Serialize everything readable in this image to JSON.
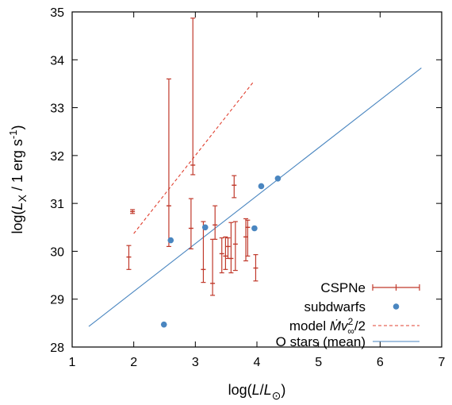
{
  "chart_data": {
    "type": "scatter",
    "xlabel": "log(L/L⊙)",
    "ylabel": "log(Lx / 1 erg s-1)",
    "xlim": [
      1,
      7
    ],
    "ylim": [
      28,
      35
    ],
    "x_ticks": [
      "1",
      "2",
      "3",
      "4",
      "5",
      "6",
      "7"
    ],
    "y_ticks": [
      "28",
      "29",
      "30",
      "31",
      "32",
      "33",
      "34",
      "35"
    ],
    "grid": false,
    "legend_position": "bottom-right",
    "series": [
      {
        "name": "CSPNe",
        "kind": "errorbar",
        "color": "#c0392b",
        "points": [
          {
            "x": 1.92,
            "y": 29.88,
            "ylo": 29.62,
            "yhi": 30.12
          },
          {
            "x": 1.98,
            "y": 30.83,
            "ylo": 30.79,
            "yhi": 30.87
          },
          {
            "x": 2.57,
            "y": 30.95,
            "ylo": 30.1,
            "yhi": 33.6
          },
          {
            "x": 2.93,
            "y": 30.48,
            "ylo": 30.05,
            "yhi": 31.1
          },
          {
            "x": 2.96,
            "y": 31.8,
            "ylo": 31.6,
            "yhi": 34.87
          },
          {
            "x": 3.13,
            "y": 29.62,
            "ylo": 29.35,
            "yhi": 30.62
          },
          {
            "x": 3.28,
            "y": 29.33,
            "ylo": 29.08,
            "yhi": 30.25
          },
          {
            "x": 3.32,
            "y": 30.55,
            "ylo": 30.25,
            "yhi": 30.95
          },
          {
            "x": 3.43,
            "y": 29.95,
            "ylo": 29.55,
            "yhi": 30.28
          },
          {
            "x": 3.49,
            "y": 29.9,
            "ylo": 29.62,
            "yhi": 30.3
          },
          {
            "x": 3.53,
            "y": 30.1,
            "ylo": 29.85,
            "yhi": 30.28
          },
          {
            "x": 3.58,
            "y": 29.85,
            "ylo": 29.55,
            "yhi": 30.6
          },
          {
            "x": 3.63,
            "y": 31.38,
            "ylo": 31.12,
            "yhi": 31.58
          },
          {
            "x": 3.65,
            "y": 30.15,
            "ylo": 29.6,
            "yhi": 30.62
          },
          {
            "x": 3.82,
            "y": 30.3,
            "ylo": 29.8,
            "yhi": 30.68
          },
          {
            "x": 3.85,
            "y": 30.5,
            "ylo": 29.9,
            "yhi": 30.65
          },
          {
            "x": 3.98,
            "y": 29.65,
            "ylo": 29.38,
            "yhi": 29.93
          }
        ]
      },
      {
        "name": "subdwarfs",
        "kind": "points",
        "color": "#4a86c0",
        "points": [
          {
            "x": 2.49,
            "y": 28.47
          },
          {
            "x": 2.6,
            "y": 30.23
          },
          {
            "x": 3.16,
            "y": 30.5
          },
          {
            "x": 3.96,
            "y": 30.48
          },
          {
            "x": 4.07,
            "y": 31.36
          },
          {
            "x": 4.34,
            "y": 31.52
          }
        ]
      },
      {
        "name": "model Ṁv∞²/2",
        "kind": "dashed-line",
        "color": "#e04030",
        "points": [
          {
            "x": 2.0,
            "y": 30.37
          },
          {
            "x": 3.95,
            "y": 33.55
          }
        ]
      },
      {
        "name": "O stars (mean)",
        "kind": "line",
        "color": "#4a86c0",
        "points": [
          {
            "x": 1.27,
            "y": 28.43
          },
          {
            "x": 6.67,
            "y": 33.83
          }
        ]
      }
    ]
  }
}
